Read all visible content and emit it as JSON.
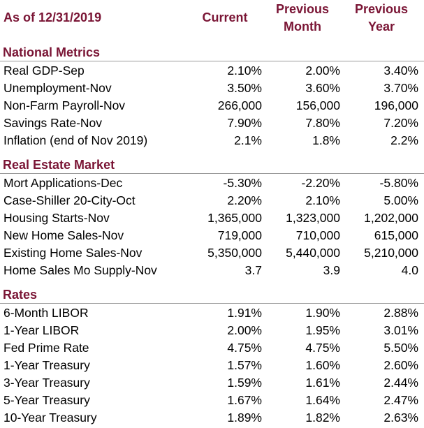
{
  "header": {
    "as_of": "As of 12/31/2019",
    "current": "Current",
    "prev_month_line1": "Previous",
    "prev_month_line2": "Month",
    "prev_year_line1": "Previous",
    "prev_year_line2": "Year"
  },
  "colors": {
    "header_text": "#7a1535",
    "divider": "#9a9a9a"
  },
  "sections": [
    {
      "title": "National Metrics",
      "rows": [
        {
          "label": "Real GDP-Sep",
          "current": "2.10%",
          "prev_month": "2.00%",
          "prev_year": "3.40%"
        },
        {
          "label": "Unemployment-Nov",
          "current": "3.50%",
          "prev_month": "3.60%",
          "prev_year": "3.70%"
        },
        {
          "label": "Non-Farm Payroll-Nov",
          "current": "266,000",
          "prev_month": "156,000",
          "prev_year": "196,000"
        },
        {
          "label": "Savings Rate-Nov",
          "current": "7.90%",
          "prev_month": "7.80%",
          "prev_year": "7.20%"
        },
        {
          "label": "Inflation (end of Nov 2019)",
          "current": "2.1%",
          "prev_month": "1.8%",
          "prev_year": "2.2%"
        }
      ]
    },
    {
      "title": "Real Estate Market",
      "rows": [
        {
          "label": "Mort Applications-Dec",
          "current": "-5.30%",
          "prev_month": "-2.20%",
          "prev_year": "-5.80%"
        },
        {
          "label": "Case-Shiller 20-City-Oct",
          "current": "2.20%",
          "prev_month": "2.10%",
          "prev_year": "5.00%"
        },
        {
          "label": "Housing Starts-Nov",
          "current": "1,365,000",
          "prev_month": "1,323,000",
          "prev_year": "1,202,000"
        },
        {
          "label": "New Home Sales-Nov",
          "current": "719,000",
          "prev_month": "710,000",
          "prev_year": "615,000"
        },
        {
          "label": "Existing Home Sales-Nov",
          "current": "5,350,000",
          "prev_month": "5,440,000",
          "prev_year": "5,210,000"
        },
        {
          "label": "Home Sales Mo Supply-Nov",
          "current": "3.7",
          "prev_month": "3.9",
          "prev_year": "4.0"
        }
      ]
    },
    {
      "title": "Rates",
      "rows": [
        {
          "label": "6-Month LIBOR",
          "current": "1.91%",
          "prev_month": "1.90%",
          "prev_year": "2.88%"
        },
        {
          "label": "1-Year LIBOR",
          "current": "2.00%",
          "prev_month": "1.95%",
          "prev_year": "3.01%"
        },
        {
          "label": "Fed Prime Rate",
          "current": "4.75%",
          "prev_month": "4.75%",
          "prev_year": "5.50%"
        },
        {
          "label": "1-Year Treasury",
          "current": "1.57%",
          "prev_month": "1.60%",
          "prev_year": "2.60%"
        },
        {
          "label": "3-Year Treasury",
          "current": "1.59%",
          "prev_month": "1.61%",
          "prev_year": "2.44%"
        },
        {
          "label": "5-Year Treasury",
          "current": "1.67%",
          "prev_month": "1.64%",
          "prev_year": "2.47%"
        },
        {
          "label": "10-Year Treasury",
          "current": "1.89%",
          "prev_month": "1.82%",
          "prev_year": "2.63%"
        }
      ]
    }
  ]
}
